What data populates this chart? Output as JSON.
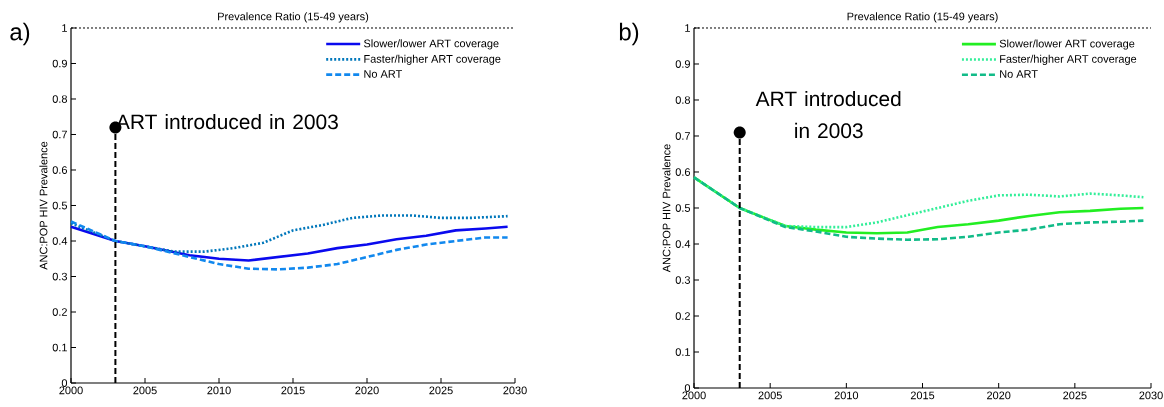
{
  "chart_data": [
    {
      "type": "line",
      "title": "Prevalence Ratio (15-49 years)",
      "ylabel": "ANC:POP HIV Prevalence",
      "annotations": [
        "a)",
        {
          "text": "ART introduced in 2003",
          "x": 2003,
          "y": 0.72
        }
      ],
      "xlim": [
        2000,
        2030
      ],
      "ylim": [
        0,
        1
      ],
      "xticks": [
        2000,
        2005,
        2010,
        2015,
        2020,
        2025,
        2030
      ],
      "yticks": [
        0,
        0.1,
        0.2,
        0.3,
        0.4,
        0.5,
        0.6,
        0.7,
        0.8,
        0.9,
        1
      ],
      "legend": "top right",
      "ref_lines": [
        {
          "axis": "y",
          "value": 1,
          "line_style": "dotted",
          "color": "#000000"
        },
        {
          "axis": "x",
          "value": 2003,
          "line_style": "dashed",
          "color": "#000000"
        }
      ],
      "series": [
        {
          "name": "Slower/lower ART coverage",
          "color": "#0a0aee",
          "line_style": "solid",
          "x": [
            2000,
            2003,
            2005,
            2008,
            2010,
            2012,
            2014,
            2016,
            2018,
            2020,
            2022,
            2024,
            2026,
            2028,
            2029.5
          ],
          "values": [
            0.44,
            0.4,
            0.385,
            0.36,
            0.35,
            0.345,
            0.355,
            0.365,
            0.38,
            0.39,
            0.405,
            0.415,
            0.43,
            0.435,
            0.44
          ]
        },
        {
          "name": "Faster/higher ART coverage",
          "color": "#0077bb",
          "line_style": "dotted",
          "x": [
            2000,
            2003,
            2005,
            2007,
            2009,
            2011,
            2013,
            2015,
            2017,
            2019,
            2021,
            2023,
            2025,
            2027,
            2029.5
          ],
          "values": [
            0.45,
            0.4,
            0.385,
            0.37,
            0.37,
            0.38,
            0.395,
            0.43,
            0.445,
            0.465,
            0.472,
            0.472,
            0.465,
            0.465,
            0.47
          ]
        },
        {
          "name": "No ART",
          "color": "#1188ee",
          "line_style": "dashed",
          "x": [
            2000,
            2003,
            2005,
            2008,
            2010,
            2012,
            2014,
            2016,
            2018,
            2020,
            2022,
            2024,
            2026,
            2028,
            2029.5
          ],
          "values": [
            0.455,
            0.4,
            0.385,
            0.355,
            0.335,
            0.322,
            0.32,
            0.325,
            0.335,
            0.355,
            0.375,
            0.39,
            0.4,
            0.41,
            0.41
          ]
        }
      ]
    },
    {
      "type": "line",
      "title": "Prevalence Ratio (15-49 years)",
      "ylabel": "ANC:POP HIV Prevalence",
      "annotations": [
        "b)",
        {
          "text": "ART introduced in 2003",
          "x": 2003,
          "y": 0.71
        }
      ],
      "xlim": [
        2000,
        2030
      ],
      "ylim": [
        0,
        1
      ],
      "xticks": [
        2000,
        2005,
        2010,
        2015,
        2020,
        2025,
        2030
      ],
      "yticks": [
        0,
        0.1,
        0.2,
        0.3,
        0.4,
        0.5,
        0.6,
        0.7,
        0.8,
        0.9,
        1
      ],
      "legend": "top right",
      "ref_lines": [
        {
          "axis": "y",
          "value": 1,
          "line_style": "dotted",
          "color": "#000000"
        },
        {
          "axis": "x",
          "value": 2003,
          "line_style": "dashed",
          "color": "#000000"
        }
      ],
      "series": [
        {
          "name": "Slower/lower ART coverage",
          "color": "#22ee22",
          "line_style": "solid",
          "x": [
            2000,
            2003,
            2006,
            2008,
            2010,
            2012,
            2014,
            2016,
            2018,
            2020,
            2022,
            2024,
            2026,
            2028,
            2029.5
          ],
          "values": [
            0.585,
            0.5,
            0.45,
            0.44,
            0.432,
            0.43,
            0.432,
            0.447,
            0.455,
            0.465,
            0.478,
            0.488,
            0.492,
            0.498,
            0.5
          ]
        },
        {
          "name": "Faster/higher ART coverage",
          "color": "#33ee99",
          "line_style": "dotted",
          "x": [
            2000,
            2003,
            2006,
            2008,
            2010,
            2012,
            2014,
            2016,
            2018,
            2020,
            2022,
            2024,
            2026,
            2028,
            2029.5
          ],
          "values": [
            0.585,
            0.5,
            0.45,
            0.447,
            0.447,
            0.46,
            0.48,
            0.5,
            0.52,
            0.535,
            0.537,
            0.532,
            0.54,
            0.535,
            0.53
          ]
        },
        {
          "name": "No ART",
          "color": "#11bb88",
          "line_style": "dashed",
          "x": [
            2000,
            2003,
            2006,
            2008,
            2010,
            2012,
            2014,
            2016,
            2018,
            2020,
            2022,
            2024,
            2026,
            2028,
            2029.5
          ],
          "values": [
            0.585,
            0.5,
            0.447,
            0.435,
            0.42,
            0.415,
            0.412,
            0.413,
            0.42,
            0.432,
            0.44,
            0.455,
            0.46,
            0.462,
            0.465
          ]
        }
      ]
    }
  ]
}
